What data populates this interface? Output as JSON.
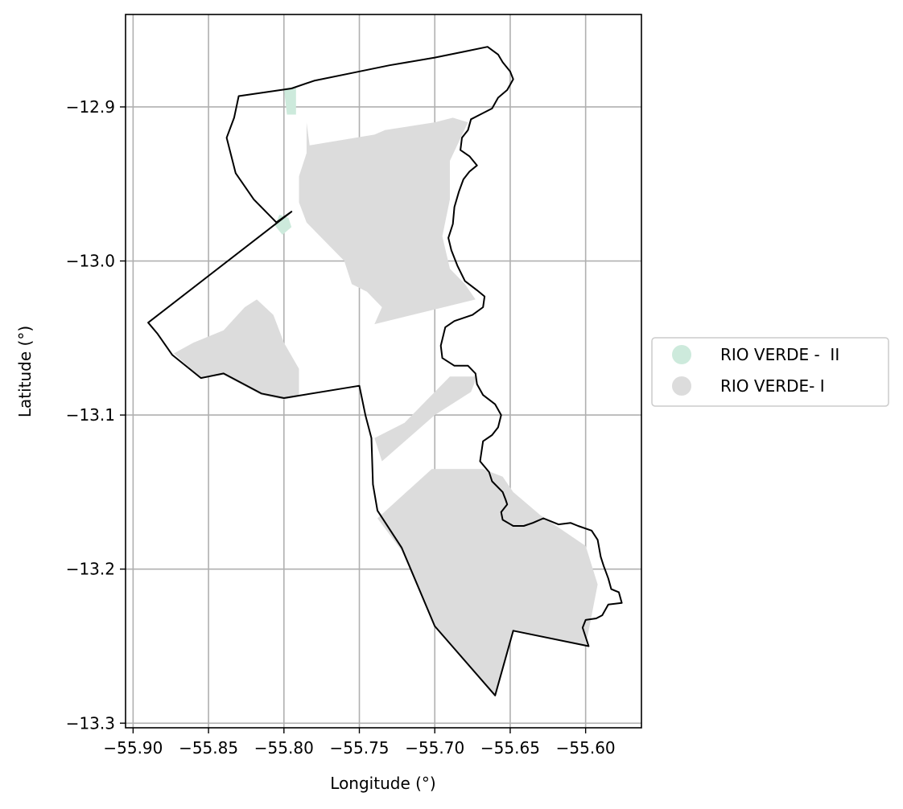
{
  "chart_data": {
    "type": "map",
    "xlabel": "Longitude (°)",
    "ylabel": "Latitude (°)",
    "xlim": [
      -55.905,
      -55.563
    ],
    "ylim": [
      -13.303,
      -12.84
    ],
    "grid": true,
    "x_ticks": [
      -55.9,
      -55.85,
      -55.8,
      -55.75,
      -55.7,
      -55.65,
      -55.6
    ],
    "x_tick_labels": [
      "−55.90",
      "−55.85",
      "−55.80",
      "−55.75",
      "−55.70",
      "−55.65",
      "−55.60"
    ],
    "y_ticks": [
      -12.9,
      -13.0,
      -13.1,
      -13.2,
      -13.3
    ],
    "y_tick_labels": [
      "−12.9",
      "−13.0",
      "−13.1",
      "−13.2",
      "−13.3"
    ],
    "legend_position": "center-right",
    "series": [
      {
        "name": "RIO VERDE -  II",
        "color": "#cdeadc"
      },
      {
        "name": "RIO VERDE- I",
        "color": "#dcdcdc"
      }
    ],
    "boundary_color": "#000000",
    "boundary": [
      [
        -55.83,
        -12.893
      ],
      [
        -55.795,
        -12.888
      ],
      [
        -55.78,
        -12.883
      ],
      [
        -55.755,
        -12.878
      ],
      [
        -55.73,
        -12.873
      ],
      [
        -55.7,
        -12.868
      ],
      [
        -55.68,
        -12.864
      ],
      [
        -55.665,
        -12.861
      ],
      [
        -55.658,
        -12.866
      ],
      [
        -55.655,
        -12.871
      ],
      [
        -55.65,
        -12.877
      ],
      [
        -55.648,
        -12.882
      ],
      [
        -55.652,
        -12.889
      ],
      [
        -55.658,
        -12.894
      ],
      [
        -55.662,
        -12.901
      ],
      [
        -55.67,
        -12.905
      ],
      [
        -55.676,
        -12.908
      ],
      [
        -55.678,
        -12.915
      ],
      [
        -55.682,
        -12.92
      ],
      [
        -55.683,
        -12.928
      ],
      [
        -55.677,
        -12.932
      ],
      [
        -55.672,
        -12.938
      ],
      [
        -55.677,
        -12.942
      ],
      [
        -55.681,
        -12.947
      ],
      [
        -55.684,
        -12.955
      ],
      [
        -55.687,
        -12.965
      ],
      [
        -55.688,
        -12.976
      ],
      [
        -55.691,
        -12.985
      ],
      [
        -55.689,
        -12.993
      ],
      [
        -55.685,
        -13.003
      ],
      [
        -55.68,
        -13.013
      ],
      [
        -55.672,
        -13.019
      ],
      [
        -55.667,
        -13.023
      ],
      [
        -55.668,
        -13.03
      ],
      [
        -55.675,
        -13.035
      ],
      [
        -55.687,
        -13.039
      ],
      [
        -55.693,
        -13.043
      ],
      [
        -55.696,
        -13.055
      ],
      [
        -55.695,
        -13.063
      ],
      [
        -55.687,
        -13.068
      ],
      [
        -55.678,
        -13.068
      ],
      [
        -55.673,
        -13.073
      ],
      [
        -55.672,
        -13.08
      ],
      [
        -55.668,
        -13.087
      ],
      [
        -55.66,
        -13.093
      ],
      [
        -55.656,
        -13.1
      ],
      [
        -55.658,
        -13.108
      ],
      [
        -55.662,
        -13.113
      ],
      [
        -55.668,
        -13.117
      ],
      [
        -55.67,
        -13.13
      ],
      [
        -55.664,
        -13.137
      ],
      [
        -55.662,
        -13.143
      ],
      [
        -55.655,
        -13.15
      ],
      [
        -55.653,
        -13.155
      ],
      [
        -55.652,
        -13.158
      ],
      [
        -55.656,
        -13.163
      ],
      [
        -55.655,
        -13.168
      ],
      [
        -55.648,
        -13.172
      ],
      [
        -55.641,
        -13.172
      ],
      [
        -55.635,
        -13.17
      ],
      [
        -55.628,
        -13.167
      ],
      [
        -55.618,
        -13.171
      ],
      [
        -55.61,
        -13.17
      ],
      [
        -55.605,
        -13.172
      ],
      [
        -55.596,
        -13.175
      ],
      [
        -55.592,
        -13.181
      ],
      [
        -55.59,
        -13.192
      ],
      [
        -55.588,
        -13.198
      ],
      [
        -55.585,
        -13.206
      ],
      [
        -55.583,
        -13.213
      ],
      [
        -55.578,
        -13.215
      ],
      [
        -55.576,
        -13.222
      ],
      [
        -55.585,
        -13.223
      ],
      [
        -55.589,
        -13.23
      ],
      [
        -55.593,
        -13.232
      ],
      [
        -55.6,
        -13.233
      ],
      [
        -55.602,
        -13.238
      ],
      [
        -55.598,
        -13.25
      ],
      [
        -55.648,
        -13.24
      ],
      [
        -55.66,
        -13.282
      ],
      [
        -55.7,
        -13.237
      ],
      [
        -55.722,
        -13.186
      ],
      [
        -55.738,
        -13.162
      ],
      [
        -55.741,
        -13.145
      ],
      [
        -55.742,
        -13.115
      ],
      [
        -55.746,
        -13.1
      ],
      [
        -55.75,
        -13.081
      ],
      [
        -55.8,
        -13.089
      ],
      [
        -55.815,
        -13.086
      ],
      [
        -55.84,
        -13.073
      ],
      [
        -55.855,
        -13.076
      ],
      [
        -55.874,
        -13.061
      ],
      [
        -55.884,
        -13.047
      ],
      [
        -55.89,
        -13.04
      ],
      [
        -55.795,
        -12.968
      ],
      [
        -55.805,
        -12.975
      ],
      [
        -55.82,
        -12.96
      ],
      [
        -55.832,
        -12.943
      ],
      [
        -55.838,
        -12.92
      ],
      [
        -55.833,
        -12.907
      ],
      [
        -55.83,
        -12.893
      ]
    ],
    "areas": [
      {
        "series": "RIO VERDE- I",
        "polygons": [
          [
            [
              -55.785,
              -12.91
            ],
            [
              -55.783,
              -12.925
            ],
            [
              -55.74,
              -12.918
            ],
            [
              -55.733,
              -12.915
            ],
            [
              -55.7,
              -12.91
            ],
            [
              -55.688,
              -12.907
            ],
            [
              -55.678,
              -12.91
            ],
            [
              -55.69,
              -12.935
            ],
            [
              -55.69,
              -12.96
            ],
            [
              -55.695,
              -12.984
            ],
            [
              -55.69,
              -13.005
            ],
            [
              -55.68,
              -13.015
            ],
            [
              -55.673,
              -13.025
            ],
            [
              -55.74,
              -13.041
            ],
            [
              -55.735,
              -13.03
            ],
            [
              -55.745,
              -13.02
            ],
            [
              -55.755,
              -13.015
            ],
            [
              -55.76,
              -13.0
            ],
            [
              -55.77,
              -12.99
            ],
            [
              -55.785,
              -12.975
            ],
            [
              -55.79,
              -12.962
            ],
            [
              -55.79,
              -12.945
            ],
            [
              -55.785,
              -12.93
            ]
          ],
          [
            [
              -55.873,
              -13.06
            ],
            [
              -55.86,
              -13.053
            ],
            [
              -55.84,
              -13.045
            ],
            [
              -55.826,
              -13.03
            ],
            [
              -55.818,
              -13.025
            ],
            [
              -55.807,
              -13.035
            ],
            [
              -55.8,
              -13.053
            ],
            [
              -55.79,
              -13.07
            ],
            [
              -55.79,
              -13.088
            ],
            [
              -55.8,
              -13.09
            ],
            [
              -55.815,
              -13.087
            ],
            [
              -55.84,
              -13.074
            ],
            [
              -55.855,
              -13.076
            ]
          ],
          [
            [
              -55.702,
              -13.135
            ],
            [
              -55.738,
              -13.167
            ],
            [
              -55.722,
              -13.188
            ],
            [
              -55.7,
              -13.237
            ],
            [
              -55.66,
              -13.282
            ],
            [
              -55.648,
              -13.24
            ],
            [
              -55.6,
              -13.25
            ],
            [
              -55.592,
              -13.21
            ],
            [
              -55.6,
              -13.185
            ],
            [
              -55.63,
              -13.165
            ],
            [
              -55.648,
              -13.15
            ],
            [
              -55.655,
              -13.14
            ],
            [
              -55.668,
              -13.135
            ]
          ],
          [
            [
              -55.74,
              -13.115
            ],
            [
              -55.72,
              -13.105
            ],
            [
              -55.705,
              -13.09
            ],
            [
              -55.69,
              -13.075
            ],
            [
              -55.672,
              -13.075
            ],
            [
              -55.676,
              -13.085
            ],
            [
              -55.7,
              -13.1
            ],
            [
              -55.735,
              -13.13
            ]
          ]
        ]
      },
      {
        "series": "RIO VERDE -  II",
        "polygons": [
          [
            [
              -55.8,
              -12.888
            ],
            [
              -55.792,
              -12.887
            ],
            [
              -55.792,
              -12.905
            ],
            [
              -55.798,
              -12.905
            ]
          ],
          [
            [
              -55.803,
              -12.97
            ],
            [
              -55.797,
              -12.972
            ],
            [
              -55.795,
              -12.978
            ],
            [
              -55.801,
              -12.983
            ],
            [
              -55.806,
              -12.977
            ]
          ]
        ]
      }
    ]
  }
}
